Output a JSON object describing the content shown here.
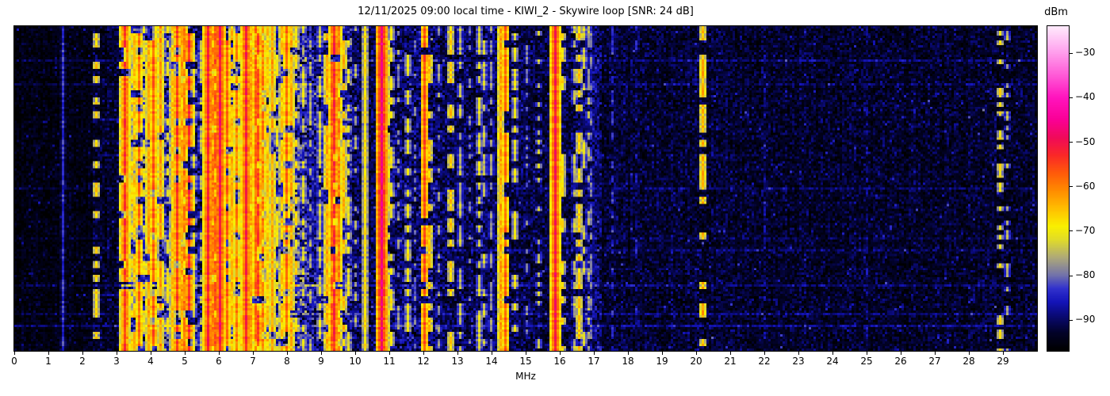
{
  "chart_data": {
    "type": "heatmap",
    "title": "12/11/2025 09:00 local time - KIWI_2 - Skywire loop [SNR: 24 dB]",
    "xlabel": "MHz",
    "x_range_mhz": [
      0,
      30
    ],
    "x_ticks": [
      0,
      1,
      2,
      3,
      4,
      5,
      6,
      7,
      8,
      9,
      10,
      11,
      12,
      13,
      14,
      15,
      16,
      17,
      18,
      19,
      20,
      21,
      22,
      23,
      24,
      25,
      26,
      27,
      28,
      29
    ],
    "colorbar": {
      "title": "dBm",
      "vmax": -24,
      "vmin": -97,
      "ticks": [
        -30,
        -40,
        -50,
        -60,
        -70,
        -80,
        -90
      ],
      "tick_labels": [
        "−30",
        "−40",
        "−50",
        "−60",
        "−70",
        "−80",
        "−90"
      ]
    },
    "colormap_stops": [
      [
        -97,
        0,
        0,
        0
      ],
      [
        -93,
        2,
        2,
        40
      ],
      [
        -89,
        10,
        10,
        120
      ],
      [
        -86,
        20,
        20,
        185
      ],
      [
        -83,
        50,
        50,
        205
      ],
      [
        -80,
        115,
        115,
        170
      ],
      [
        -76,
        175,
        170,
        120
      ],
      [
        -72,
        225,
        220,
        40
      ],
      [
        -69,
        250,
        240,
        0
      ],
      [
        -65,
        255,
        190,
        0
      ],
      [
        -61,
        255,
        140,
        0
      ],
      [
        -57,
        255,
        90,
        10
      ],
      [
        -53,
        250,
        40,
        40
      ],
      [
        -49,
        240,
        10,
        90
      ],
      [
        -45,
        250,
        0,
        150
      ],
      [
        -40,
        255,
        20,
        190
      ],
      [
        -35,
        255,
        90,
        215
      ],
      [
        -29,
        255,
        170,
        240
      ],
      [
        -24,
        255,
        235,
        252
      ]
    ],
    "noise_profile_format": [
      "freq_start_mhz",
      "noise_floor_dbm",
      "sigma_db"
    ],
    "noise_profile": [
      [
        0,
        -95.2,
        1.8
      ],
      [
        2.3,
        -93.5,
        2.2
      ],
      [
        3.15,
        -86.5,
        4.8
      ],
      [
        5.0,
        -90.5,
        3.0
      ],
      [
        5.55,
        -85.0,
        5.2
      ],
      [
        8.6,
        -88.0,
        4.0
      ],
      [
        9.9,
        -91.0,
        3.0
      ],
      [
        10.6,
        -90.5,
        3.4
      ],
      [
        12.4,
        -91.5,
        2.9
      ],
      [
        14.8,
        -92.0,
        2.7
      ],
      [
        16.3,
        -90.8,
        3.2
      ],
      [
        17.2,
        -92.8,
        2.4
      ],
      [
        21.0,
        -93.2,
        2.3
      ],
      [
        26.0,
        -93.4,
        2.3
      ]
    ],
    "h_streaks_format": [
      "y_fraction",
      "boost_db",
      "freq_from_mhz",
      "freq_to_mhz"
    ],
    "h_streaks": [
      [
        0.1,
        4,
        0,
        30
      ],
      [
        0.175,
        3,
        0,
        30
      ],
      [
        0.29,
        5,
        2.5,
        10
      ],
      [
        0.4,
        3,
        2.5,
        9.5
      ],
      [
        0.5,
        3,
        0,
        30
      ],
      [
        0.57,
        3,
        3,
        9.5
      ],
      [
        0.655,
        2,
        0,
        30
      ],
      [
        0.69,
        3,
        12,
        30
      ],
      [
        0.8,
        8,
        3.1,
        9.9
      ],
      [
        0.802,
        4,
        0,
        30
      ],
      [
        0.83,
        5,
        2.5,
        10
      ],
      [
        0.89,
        4,
        0,
        30
      ],
      [
        0.93,
        5,
        0,
        30
      ],
      [
        0.965,
        3,
        2,
        12
      ]
    ],
    "signals_format": [
      "freq_mhz",
      "peak_dbm",
      "style"
    ],
    "signals": [
      [
        1.4,
        -84,
        "solid"
      ],
      [
        2.4,
        -67,
        "dash"
      ],
      [
        3.22,
        -54,
        "int"
      ],
      [
        3.32,
        -62,
        "int"
      ],
      [
        3.42,
        -68,
        "dash"
      ],
      [
        3.55,
        -66,
        "int"
      ],
      [
        3.68,
        -59,
        "int"
      ],
      [
        3.8,
        -70,
        "dash"
      ],
      [
        3.92,
        -63,
        "int"
      ],
      [
        4.05,
        -57,
        "int"
      ],
      [
        4.18,
        -68,
        "dash"
      ],
      [
        4.32,
        -62,
        "int"
      ],
      [
        4.47,
        -70,
        "dash"
      ],
      [
        4.62,
        -66,
        "int"
      ],
      [
        4.77,
        -55,
        "int"
      ],
      [
        4.9,
        -63,
        "int"
      ],
      [
        5.0,
        -60,
        "int"
      ],
      [
        5.12,
        -53,
        "dash"
      ],
      [
        5.3,
        -72,
        "dash"
      ],
      [
        5.45,
        -75,
        "dash"
      ],
      [
        5.62,
        -64,
        "int"
      ],
      [
        5.7,
        -52,
        "solid"
      ],
      [
        5.8,
        -60,
        "int"
      ],
      [
        5.92,
        -57,
        "int"
      ],
      [
        6.0,
        -50,
        "solid"
      ],
      [
        6.1,
        -62,
        "int"
      ],
      [
        6.22,
        -58,
        "int"
      ],
      [
        6.35,
        -65,
        "int"
      ],
      [
        6.5,
        -60,
        "int"
      ],
      [
        6.65,
        -68,
        "dash"
      ],
      [
        6.8,
        -52,
        "solid"
      ],
      [
        6.92,
        -63,
        "int"
      ],
      [
        7.05,
        -58,
        "int"
      ],
      [
        7.18,
        -55,
        "int"
      ],
      [
        7.3,
        -60,
        "int"
      ],
      [
        7.45,
        -66,
        "int"
      ],
      [
        7.6,
        -63,
        "int"
      ],
      [
        7.72,
        -70,
        "dash"
      ],
      [
        7.85,
        -66,
        "int"
      ],
      [
        8.0,
        -58,
        "int"
      ],
      [
        8.12,
        -64,
        "int"
      ],
      [
        8.28,
        -68,
        "dash"
      ],
      [
        8.45,
        -72,
        "dash"
      ],
      [
        8.7,
        -76,
        "dash"
      ],
      [
        8.95,
        -73,
        "dash"
      ],
      [
        9.15,
        -64,
        "int"
      ],
      [
        9.28,
        -58,
        "int"
      ],
      [
        9.4,
        -53,
        "int"
      ],
      [
        9.52,
        -60,
        "int"
      ],
      [
        9.66,
        -65,
        "dash"
      ],
      [
        9.8,
        -71,
        "dash"
      ],
      [
        10.0,
        -76,
        "dot"
      ],
      [
        10.3,
        -69,
        "solid"
      ],
      [
        10.8,
        -47,
        "solid"
      ],
      [
        10.95,
        -64,
        "int"
      ],
      [
        11.08,
        -70,
        "dash"
      ],
      [
        11.3,
        -78,
        "dot"
      ],
      [
        11.52,
        -70,
        "dash"
      ],
      [
        11.75,
        -80,
        "dot"
      ],
      [
        12.05,
        -56,
        "int"
      ],
      [
        12.18,
        -65,
        "dash"
      ],
      [
        12.48,
        -78,
        "dot"
      ],
      [
        12.8,
        -66,
        "dash"
      ],
      [
        13.1,
        -75,
        "dash"
      ],
      [
        13.35,
        -79,
        "dot"
      ],
      [
        13.62,
        -72,
        "dash"
      ],
      [
        13.78,
        -74,
        "dash"
      ],
      [
        13.98,
        -78,
        "dash"
      ],
      [
        14.27,
        -63,
        "solid"
      ],
      [
        14.4,
        -58,
        "int"
      ],
      [
        14.72,
        -71,
        "dash"
      ],
      [
        15.05,
        -80,
        "dot"
      ],
      [
        15.38,
        -74,
        "dot"
      ],
      [
        15.85,
        -51,
        "solid"
      ],
      [
        16.1,
        -68,
        "dash"
      ],
      [
        16.42,
        -75,
        "dash"
      ],
      [
        16.55,
        -66,
        "dash"
      ],
      [
        16.68,
        -73,
        "dash"
      ],
      [
        16.82,
        -76,
        "dash"
      ],
      [
        16.95,
        -80,
        "dash"
      ],
      [
        17.55,
        -84,
        "dash"
      ],
      [
        18.25,
        -86,
        "dot"
      ],
      [
        20.2,
        -64,
        "dash"
      ],
      [
        22.0,
        -88,
        "dot"
      ],
      [
        25.0,
        -88,
        "dot"
      ],
      [
        28.9,
        -69,
        "dot"
      ],
      [
        29.15,
        -76,
        "dot"
      ]
    ],
    "seed": 1337
  }
}
